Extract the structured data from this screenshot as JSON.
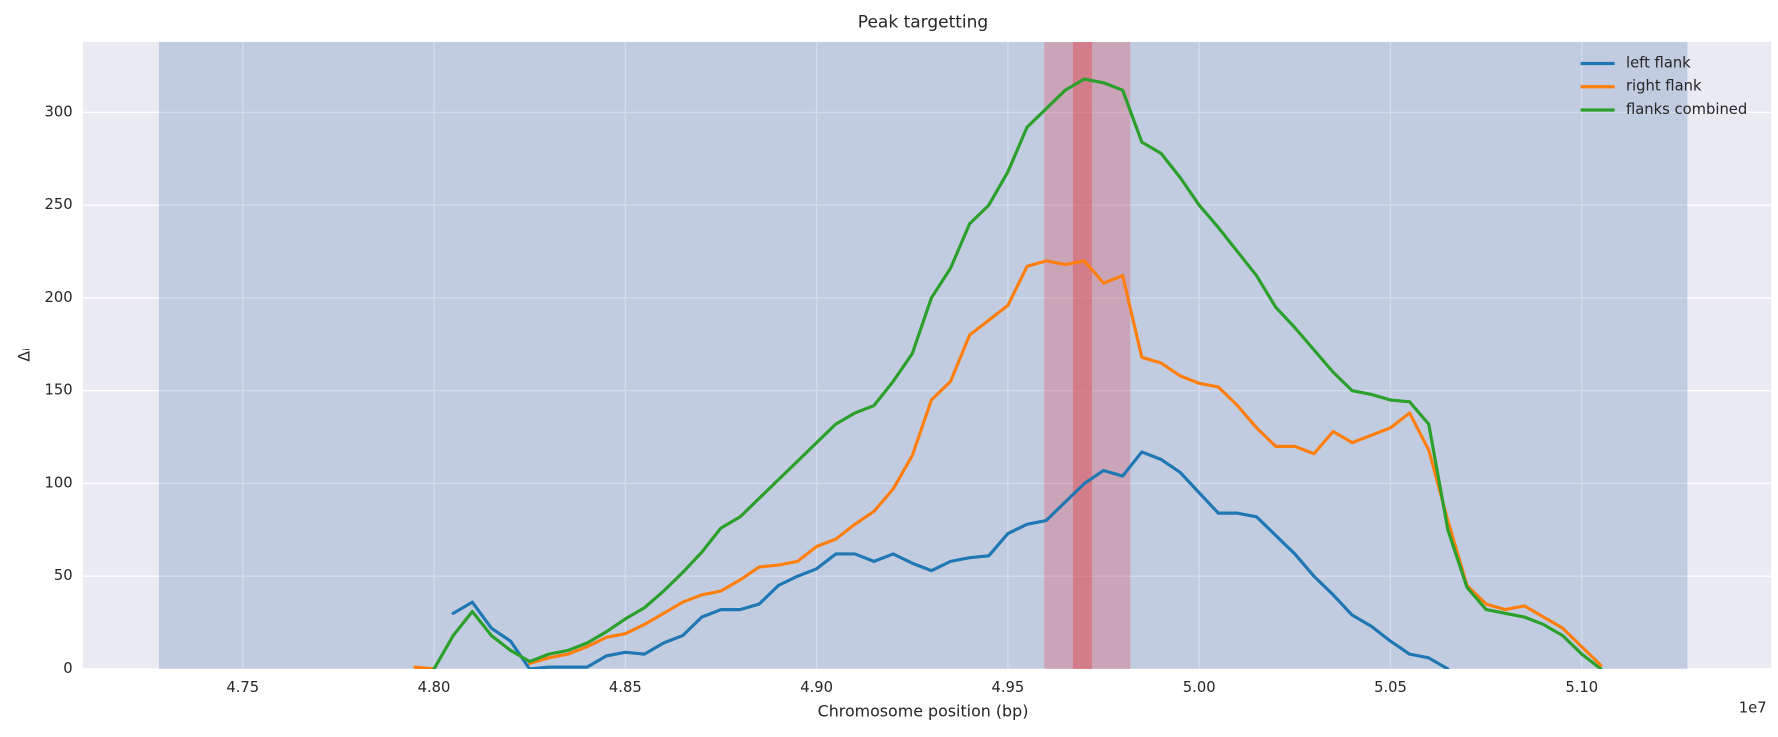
{
  "chart_data": {
    "type": "line",
    "title": "Peak targetting",
    "xlabel": "Chromosome position (bp)",
    "ylabel": "Δᵢ",
    "x_offset_label": "1e7",
    "xlim": [
      4.7082,
      5.1495
    ],
    "ylim": [
      0,
      338
    ],
    "xticks": [
      4.75,
      {
        "value": 4.8,
        "label": "4.80"
      },
      4.85,
      {
        "value": 4.9,
        "label": "4.90"
      },
      4.95,
      {
        "value": 5.0,
        "label": "5.00"
      },
      5.05,
      {
        "value": 5.1,
        "label": "5.10"
      }
    ],
    "yticks": [
      0,
      50,
      100,
      150,
      200,
      250,
      300
    ],
    "grid": true,
    "legend": "upper right",
    "spans": [
      {
        "xmin": 4.7281,
        "xmax": 5.1276,
        "color": "#4c72b0",
        "opacity": 0.25
      },
      {
        "xmin": 4.9595,
        "xmax": 4.982,
        "color": "#dd4b55",
        "opacity": 0.3
      },
      {
        "xmin": 4.967,
        "xmax": 4.972,
        "color": "#dd4b55",
        "opacity": 0.45
      }
    ],
    "x": [
      4.795,
      4.8,
      4.805,
      4.81,
      4.815,
      4.82,
      4.825,
      4.83,
      4.835,
      4.84,
      4.845,
      4.85,
      4.855,
      4.86,
      4.865,
      4.87,
      4.875,
      4.88,
      4.885,
      4.89,
      4.895,
      4.9,
      4.905,
      4.91,
      4.915,
      4.92,
      4.925,
      4.93,
      4.935,
      4.94,
      4.945,
      4.95,
      4.955,
      4.96,
      4.965,
      4.97,
      4.975,
      4.98,
      4.985,
      4.99,
      4.995,
      5.0,
      5.005,
      5.01,
      5.015,
      5.02,
      5.025,
      5.03,
      5.035,
      5.04,
      5.045,
      5.05,
      5.055,
      5.06,
      5.065,
      5.07,
      5.075,
      5.08,
      5.085,
      5.09,
      5.095,
      5.1,
      5.105
    ],
    "series": [
      {
        "name": "left flank",
        "color": "#1f77b4",
        "values": [
          null,
          null,
          30,
          36,
          22,
          15,
          0,
          1,
          1,
          1,
          7,
          9,
          8,
          14,
          18,
          28,
          32,
          32,
          35,
          45,
          50,
          54,
          62,
          62,
          58,
          62,
          57,
          53,
          58,
          60,
          61,
          73,
          78,
          80,
          90,
          100,
          107,
          104,
          117,
          113,
          106,
          95,
          84,
          84,
          82,
          72,
          62,
          50,
          40,
          29,
          23,
          15,
          8,
          6,
          0,
          null,
          null,
          null,
          null,
          null,
          null,
          null,
          null
        ]
      },
      {
        "name": "right flank",
        "color": "#ff7f0e",
        "values": [
          1,
          0,
          null,
          null,
          null,
          null,
          3,
          6,
          8,
          12,
          17,
          19,
          24,
          30,
          36,
          40,
          42,
          48,
          55,
          56,
          58,
          66,
          70,
          78,
          85,
          97,
          115,
          145,
          155,
          180,
          188,
          196,
          217,
          220,
          218,
          220,
          208,
          212,
          168,
          165,
          158,
          154,
          152,
          142,
          130,
          120,
          120,
          116,
          128,
          122,
          126,
          130,
          138,
          118,
          80,
          45,
          35,
          32,
          34,
          28,
          22,
          12,
          2
        ]
      },
      {
        "name": "flanks combined",
        "color": "#2ca02c",
        "values": [
          null,
          0,
          18,
          31,
          18,
          10,
          4,
          8,
          10,
          14,
          20,
          27,
          33,
          42,
          52,
          63,
          76,
          82,
          92,
          102,
          112,
          122,
          132,
          138,
          142,
          155,
          170,
          200,
          216,
          240,
          250,
          268,
          292,
          302,
          312,
          318,
          316,
          312,
          284,
          278,
          265,
          250,
          238,
          225,
          212,
          195,
          184,
          172,
          160,
          150,
          148,
          145,
          144,
          132,
          75,
          44,
          32,
          30,
          28,
          24,
          18,
          8,
          0
        ]
      }
    ]
  }
}
